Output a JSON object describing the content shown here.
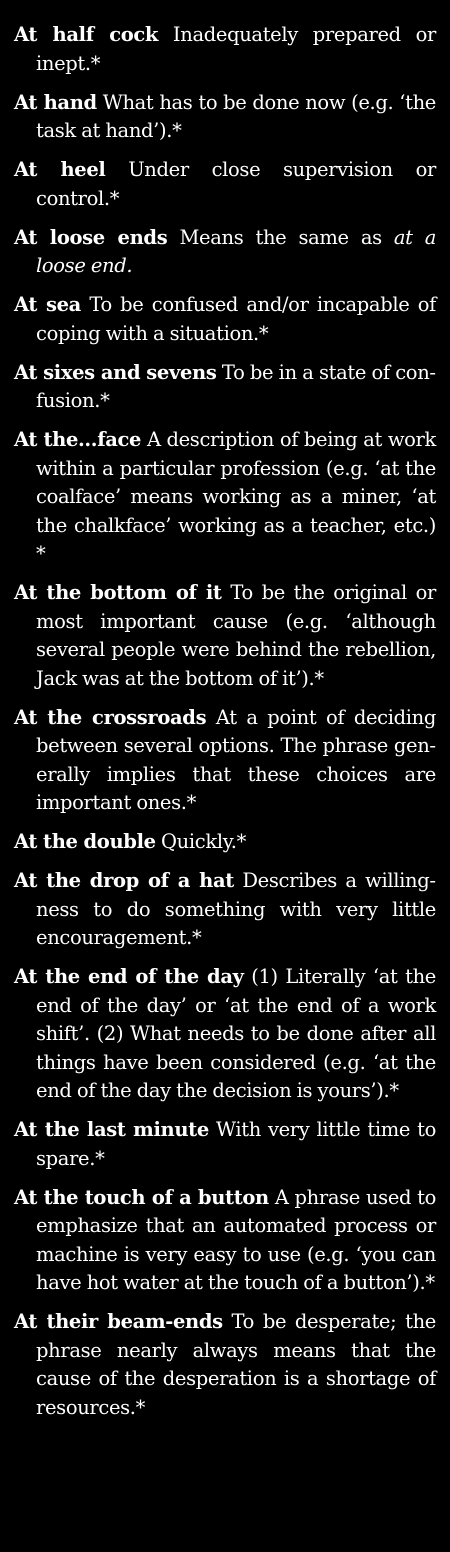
{
  "entries": [
    {
      "term": "At half cock",
      "def": "Inadequately prepared or inept.*",
      "italic": "",
      "after": ""
    },
    {
      "term": "At hand",
      "def": "What has to be done now (e.g. ‘the task at hand’).*",
      "italic": "",
      "after": ""
    },
    {
      "term": "At heel",
      "def": "Under close supervision or control.*",
      "italic": "",
      "after": ""
    },
    {
      "term": "At loose ends",
      "def": "Means the same as",
      "italic": "at a loose end.",
      "after": ""
    },
    {
      "term": "At sea",
      "def": "To be confused and/or incapable of coping with a situation.*",
      "italic": "",
      "after": ""
    },
    {
      "term": "At sixes and sevens",
      "def": "To be in a state of con­fusion.*",
      "italic": "",
      "after": ""
    },
    {
      "term": "At the…face",
      "def": "A description of being at work within a particular profession (e.g. ‘at the coalface’ means working as a miner, ‘at the chalkface’ working as a teacher, etc.) *",
      "italic": "",
      "after": ""
    },
    {
      "term": "At the bottom of it",
      "def": "To be the original or most important cause (e.g. ‘although several people were behind the rebellion, Jack was at the bottom of it’).*",
      "italic": "",
      "after": ""
    },
    {
      "term": "At the crossroads",
      "def": "At a point of deciding between several options. The phrase gen­erally implies that these choices are important ones.*",
      "italic": "",
      "after": ""
    },
    {
      "term": "At the double",
      "def": "Quickly.*",
      "italic": "",
      "after": ""
    },
    {
      "term": "At the drop of a hat",
      "def": "Describes a willing­ness to do something with very little encouragement.*",
      "italic": "",
      "after": ""
    },
    {
      "term": "At the end of the day",
      "def": "(1) Literally ‘at the end of the day’ or ‘at the end of a work shift’. (2) What needs to be done after all things have been considered (e.g. ‘at the end of the day the decision is yours’).*",
      "italic": "",
      "after": ""
    },
    {
      "term": "At the last minute",
      "def": "With very little time to spare.*",
      "italic": "",
      "after": ""
    },
    {
      "term": "At the touch of a button",
      "def": "A phrase used to emphasize that an automated process or machine is very easy to use (e.g. ‘you can have hot water at the touch of a button’).*",
      "italic": "",
      "after": ""
    },
    {
      "term": "At their beam-ends",
      "def": "To be desperate; the phrase nearly always means that the cause of the desperation is a shortage of resources.*",
      "italic": "",
      "after": ""
    }
  ]
}
